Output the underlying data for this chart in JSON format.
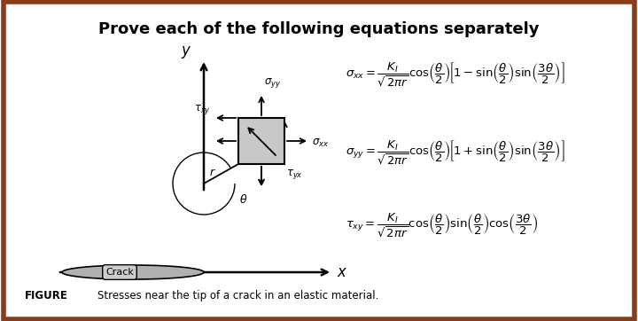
{
  "title": "Prove each of the following equations separately",
  "title_fontsize": 13,
  "title_fontweight": "bold",
  "eq1": "$\\sigma_{xx} = \\dfrac{K_I}{\\sqrt{2\\pi r}}\\cos\\!\\left(\\dfrac{\\theta}{2}\\right)\\!\\left[1-\\sin\\!\\left(\\dfrac{\\theta}{2}\\right)\\sin\\!\\left(\\dfrac{3\\theta}{2}\\right)\\right]$",
  "eq2": "$\\sigma_{yy} = \\dfrac{K_I}{\\sqrt{2\\pi r}}\\cos\\!\\left(\\dfrac{\\theta}{2}\\right)\\!\\left[1+\\sin\\!\\left(\\dfrac{\\theta}{2}\\right)\\sin\\!\\left(\\dfrac{3\\theta}{2}\\right)\\right]$",
  "eq3": "$\\tau_{xy} = \\dfrac{K_I}{\\sqrt{2\\pi r}}\\cos\\!\\left(\\dfrac{\\theta}{2}\\right)\\sin\\!\\left(\\dfrac{\\theta}{2}\\right)\\cos\\!\\left(\\dfrac{3\\theta}{2}\\right)$",
  "figure_label": "FIGURE",
  "figure_caption": "Stresses near the tip of a crack in an elastic material.",
  "bg_color": "#ffffff",
  "border_color": "#8B3A1A",
  "crack_color": "#b0b0b0",
  "element_color": "#c8c8c8",
  "arrow_color": "#000000"
}
